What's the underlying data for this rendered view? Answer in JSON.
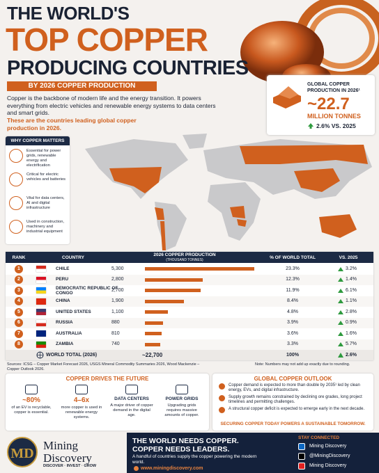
{
  "header": {
    "title_line1": "THE WORLD'S",
    "title_line2": "TOP COPPER",
    "title_line3": "PRODUCING COUNTRIES",
    "badge": "BY 2026 COPPER PRODUCTION",
    "intro": "Copper is the backbone of modern life and the energy transition. It powers everything from electric vehicles and renewable energy systems to data centers and smart grids.",
    "highlight": "These are the countries leading global copper production in 2026."
  },
  "global_box": {
    "label": "GLOBAL COPPER PRODUCTION IN 2026¹",
    "value": "~22.7",
    "unit": "MILLION TONNES",
    "change": "2.6% VS. 2025"
  },
  "why": {
    "title": "WHY COPPER MATTERS",
    "items": [
      "Essential for power grids, renewable energy and electrification",
      "Critical for electric vehicles and batteries",
      "Vital for data centers, AI and digital infrastructure",
      "Used in construction, machinery and industrial equipment"
    ]
  },
  "table": {
    "headers": {
      "rank": "RANK",
      "country": "COUNTRY",
      "production": "2026 COPPER PRODUCTION",
      "production_unit": "(THOUSAND TONNES)",
      "share": "% OF WORLD TOTAL",
      "change": "VS. 2025"
    },
    "rows": [
      {
        "rank": "1",
        "country": "CHILE",
        "production": 5300,
        "production_label": "5,300",
        "share": "23.3%",
        "change": "3.2%"
      },
      {
        "rank": "2",
        "country": "PERU",
        "production": 2800,
        "production_label": "2,800",
        "share": "12.3%",
        "change": "1.4%"
      },
      {
        "rank": "3",
        "country": "DEMOCRATIC REPUBLIC OF CONGO",
        "production": 2700,
        "production_label": "2,700",
        "share": "11.9%",
        "change": "6.1%"
      },
      {
        "rank": "4",
        "country": "CHINA",
        "production": 1900,
        "production_label": "1,900",
        "share": "8.4%",
        "change": "1.1%"
      },
      {
        "rank": "5",
        "country": "UNITED STATES",
        "production": 1100,
        "production_label": "1,100",
        "share": "4.8%",
        "change": "2.8%"
      },
      {
        "rank": "6",
        "country": "RUSSIA",
        "production": 880,
        "production_label": "880",
        "share": "3.9%",
        "change": "0.9%"
      },
      {
        "rank": "7",
        "country": "AUSTRALIA",
        "production": 810,
        "production_label": "810",
        "share": "3.6%",
        "change": "1.6%"
      },
      {
        "rank": "8",
        "country": "ZAMBIA",
        "production": 740,
        "production_label": "740",
        "share": "3.3%",
        "change": "5.7%"
      }
    ],
    "total": {
      "label": "WORLD TOTAL (2026)",
      "production": "~22,700",
      "share": "100%",
      "change": "2.6%"
    }
  },
  "sources": "Sources: ICSG – Copper Market Forecast 2026, USGS Mineral Commodity Summaries 2026, Wood Mackenzie – Copper Outlook 2026.",
  "note": "Note: Numbers may not add up exactly due to rounding.",
  "drives": {
    "title": "COPPER DRIVES THE FUTURE",
    "items": [
      {
        "value": "~80%",
        "text": "of an EV is recyclable, copper is essential."
      },
      {
        "value": "4–6x",
        "text": "more copper is used in renewable energy systems."
      },
      {
        "value": "DATA CENTERS",
        "text": "A major driver of copper demand in the digital age."
      },
      {
        "value": "POWER GRIDS",
        "text": "Upgrading grids requires massive amounts of copper."
      }
    ]
  },
  "outlook": {
    "title": "GLOBAL COPPER OUTLOOK",
    "items": [
      "Copper demand is expected to more than double by 2035¹ led by clean energy, EVs, and digital infrastructure.",
      "Supply growth remains constrained by declining ore grades, long project timelines and permitting challenges.",
      "A structural copper deficit is expected to emerge early in the next decade."
    ],
    "footer": "SECURING COPPER TODAY POWERS A SUSTAINABLE TOMORROW."
  },
  "footer": {
    "logo": "MD",
    "brand": "Mining Discovery",
    "tagline": "DISCOVER · INVEST · GROW",
    "headline1": "THE WORLD NEEDS COPPER.",
    "headline2": "COPPER NEEDS LEADERS.",
    "text": "A handful of countries supply the copper powering the modern world.",
    "url": "www.miningdiscovery.com",
    "social_title": "STAY CONNECTED",
    "social": [
      "Mining Discovery",
      "@MiningDiscovery",
      "Mining Discovery"
    ]
  }
}
